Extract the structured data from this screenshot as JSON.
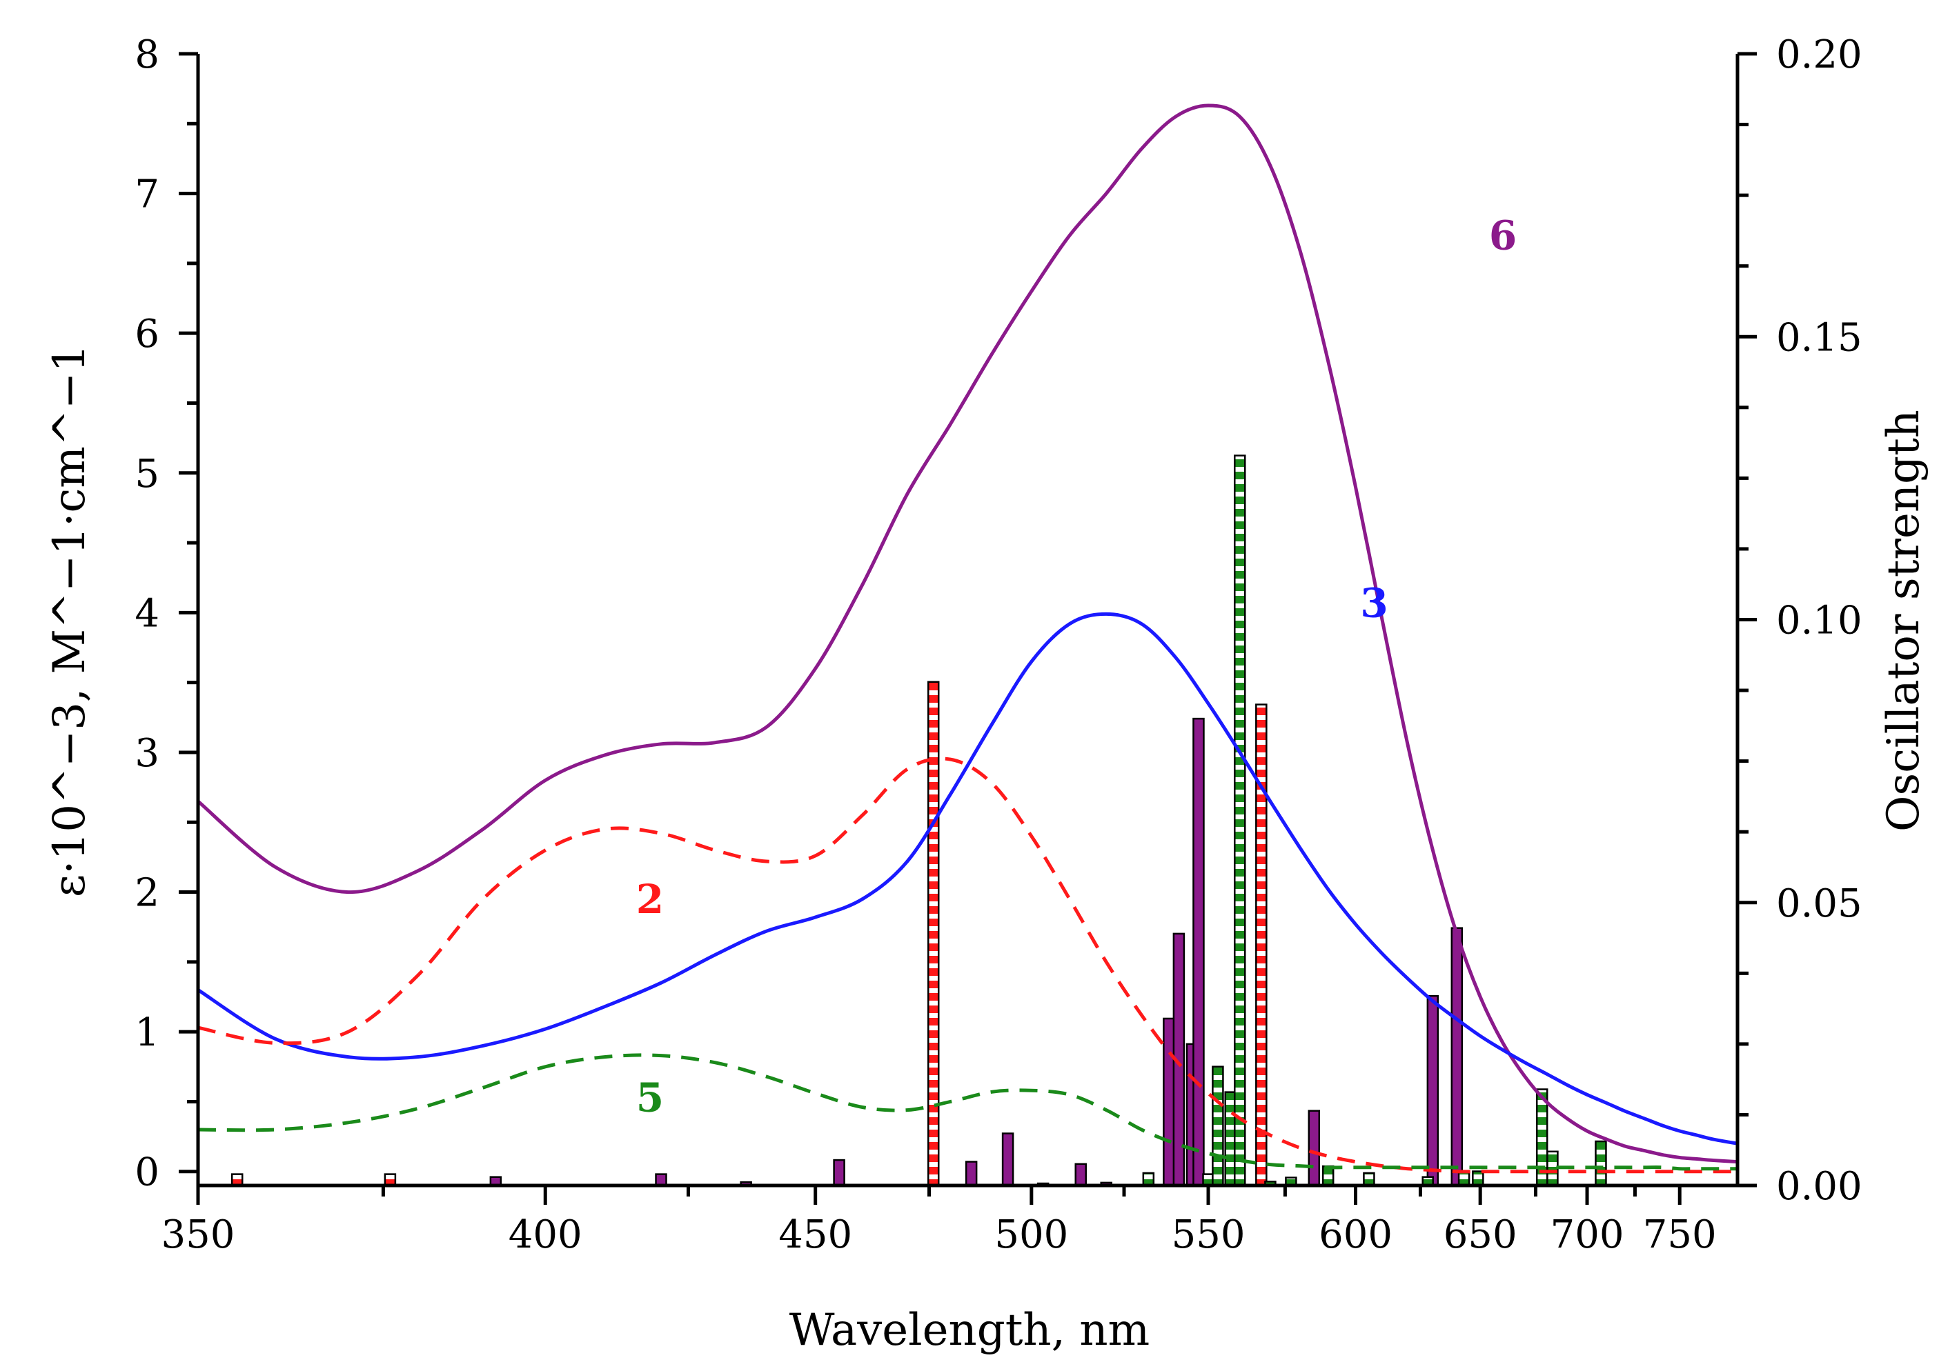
{
  "chart_data": {
    "type": "line+bar",
    "xlabel": "Wavelength, nm",
    "ylabel_left": "ε·10^−3, M^−1·cm^−1",
    "ylabel_right": "Oscillator strength",
    "x_axis": {
      "scale": "energy (1/λ)",
      "xlim": [
        350,
        785
      ],
      "ticks": [
        350,
        400,
        450,
        500,
        550,
        600,
        650,
        700,
        750
      ],
      "tick_labels": [
        "350",
        "400",
        "450",
        "500",
        "550",
        "600",
        "650",
        "700",
        "750"
      ],
      "minor_ticks": [
        375,
        425,
        475,
        525,
        575,
        625,
        675,
        725
      ]
    },
    "y_left": {
      "ylim": [
        -0.1,
        8
      ],
      "ticks": [
        0,
        1,
        2,
        3,
        4,
        5,
        6,
        7,
        8
      ],
      "tick_labels": [
        "0",
        "1",
        "2",
        "3",
        "4",
        "5",
        "6",
        "7",
        "8"
      ]
    },
    "y_right": {
      "ylim": [
        0,
        0.2
      ],
      "ticks": [
        0,
        0.05,
        0.1,
        0.15,
        0.2
      ],
      "tick_labels": [
        "0.00",
        "0.05",
        "0.10",
        "0.15",
        "0.20"
      ]
    },
    "series": [
      {
        "name": "6",
        "label": "6",
        "color": "#8b1a8b",
        "style": "solid",
        "x": [
          350,
          360,
          370,
          380,
          390,
          400,
          410,
          420,
          430,
          440,
          450,
          460,
          470,
          480,
          490,
          500,
          510,
          520,
          530,
          540,
          550,
          560,
          570,
          580,
          590,
          600,
          610,
          620,
          630,
          640,
          650,
          660,
          670,
          680,
          690,
          700,
          710,
          720,
          730,
          740,
          750,
          760,
          770,
          785
        ],
        "values": [
          2.65,
          2.18,
          2.0,
          2.15,
          2.45,
          2.8,
          2.98,
          3.06,
          3.07,
          3.18,
          3.6,
          4.2,
          4.85,
          5.35,
          5.85,
          6.3,
          6.7,
          7.0,
          7.32,
          7.55,
          7.63,
          7.55,
          7.2,
          6.6,
          5.8,
          4.9,
          3.95,
          3.05,
          2.3,
          1.7,
          1.25,
          0.92,
          0.68,
          0.5,
          0.38,
          0.29,
          0.23,
          0.18,
          0.15,
          0.12,
          0.1,
          0.09,
          0.08,
          0.07
        ]
      },
      {
        "name": "3",
        "label": "3",
        "color": "#1a1aff",
        "style": "solid",
        "x": [
          350,
          360,
          370,
          380,
          390,
          400,
          410,
          420,
          430,
          440,
          450,
          460,
          470,
          480,
          490,
          500,
          510,
          520,
          530,
          540,
          550,
          560,
          570,
          580,
          590,
          600,
          610,
          620,
          630,
          640,
          650,
          660,
          670,
          680,
          690,
          700,
          710,
          720,
          730,
          740,
          750,
          760,
          770,
          785
        ],
        "values": [
          1.3,
          0.95,
          0.82,
          0.82,
          0.9,
          1.02,
          1.18,
          1.35,
          1.55,
          1.72,
          1.82,
          1.95,
          2.22,
          2.7,
          3.2,
          3.65,
          3.92,
          3.99,
          3.92,
          3.68,
          3.35,
          3.0,
          2.65,
          2.32,
          2.02,
          1.77,
          1.56,
          1.38,
          1.22,
          1.09,
          0.97,
          0.87,
          0.78,
          0.7,
          0.62,
          0.55,
          0.49,
          0.43,
          0.38,
          0.33,
          0.29,
          0.26,
          0.23,
          0.2
        ]
      },
      {
        "name": "2",
        "label": "2",
        "color": "#ff1a1a",
        "style": "dashed",
        "x": [
          350,
          360,
          370,
          380,
          390,
          400,
          410,
          420,
          430,
          440,
          450,
          460,
          470,
          480,
          490,
          500,
          510,
          520,
          530,
          540,
          550,
          560,
          570,
          580,
          590,
          600,
          610,
          620,
          630,
          640,
          650,
          660,
          670,
          680,
          690,
          700,
          710,
          720,
          730,
          740,
          750,
          760,
          770,
          785
        ],
        "values": [
          1.03,
          0.92,
          1.0,
          1.4,
          1.95,
          2.3,
          2.45,
          2.42,
          2.3,
          2.22,
          2.26,
          2.55,
          2.88,
          2.95,
          2.78,
          2.4,
          1.95,
          1.5,
          1.12,
          0.8,
          0.56,
          0.38,
          0.26,
          0.17,
          0.11,
          0.07,
          0.04,
          0.02,
          0.01,
          0.0,
          0.0,
          0.0,
          0.0,
          0.0,
          0.0,
          0.0,
          0.0,
          0.0,
          0.0,
          0.0,
          0.0,
          0.0,
          0.0,
          0.0
        ]
      },
      {
        "name": "5",
        "label": "5",
        "color": "#1a8a1a",
        "style": "dashed",
        "x": [
          350,
          360,
          370,
          380,
          390,
          400,
          410,
          420,
          430,
          440,
          450,
          460,
          470,
          480,
          490,
          500,
          510,
          520,
          530,
          540,
          550,
          560,
          570,
          580,
          590,
          600,
          610,
          620,
          630,
          640,
          650,
          660,
          670,
          680,
          690,
          700,
          710,
          720,
          730,
          740,
          750,
          760,
          770,
          785
        ],
        "values": [
          0.3,
          0.3,
          0.35,
          0.45,
          0.6,
          0.75,
          0.82,
          0.83,
          0.78,
          0.68,
          0.56,
          0.46,
          0.44,
          0.5,
          0.57,
          0.58,
          0.55,
          0.44,
          0.3,
          0.2,
          0.13,
          0.08,
          0.05,
          0.04,
          0.03,
          0.03,
          0.03,
          0.03,
          0.03,
          0.03,
          0.03,
          0.03,
          0.03,
          0.03,
          0.03,
          0.03,
          0.03,
          0.03,
          0.03,
          0.03,
          0.02,
          0.02,
          0.02,
          0.02
        ]
      }
    ],
    "curve_labels": [
      {
        "text": "6",
        "series": "6",
        "x": 660,
        "y": 6.6
      },
      {
        "text": "3",
        "series": "3",
        "x": 607,
        "y": 3.97
      },
      {
        "text": "2",
        "series": "2",
        "x": 418,
        "y": 1.85
      },
      {
        "text": "5",
        "series": "5",
        "x": 418,
        "y": 0.43
      }
    ],
    "oscillator_bars": [
      {
        "series": "2",
        "color": "#ff1a1a",
        "pattern": "dashed-white",
        "x": [
          355,
          376,
          476,
          540,
          567
        ],
        "f": [
          0.002,
          0.002,
          0.089,
          0.004,
          0.085
        ]
      },
      {
        "series": "6",
        "color": "#8b1a8b",
        "pattern": "solid",
        "x": [
          392,
          420,
          436,
          455,
          485,
          494,
          503,
          513,
          520,
          538,
          541,
          545,
          547,
          585,
          630,
          640
        ],
        "f": [
          0.0015,
          0.002,
          0.0006,
          0.0045,
          0.0042,
          0.0092,
          0.0003,
          0.0038,
          0.0005,
          0.0295,
          0.0445,
          0.025,
          0.0825,
          0.0132,
          0.0335,
          0.0455
        ]
      },
      {
        "series": "5",
        "color": "#1a8a1a",
        "pattern": "dashed-white",
        "x": [
          532,
          550,
          553,
          557,
          560,
          570,
          577,
          590,
          605,
          628,
          643,
          649,
          678,
          683,
          707
        ],
        "f": [
          0.0022,
          0.002,
          0.021,
          0.0165,
          0.129,
          0.0007,
          0.0014,
          0.0034,
          0.0022,
          0.0015,
          0.0025,
          0.0025,
          0.017,
          0.006,
          0.0078
        ]
      }
    ]
  }
}
